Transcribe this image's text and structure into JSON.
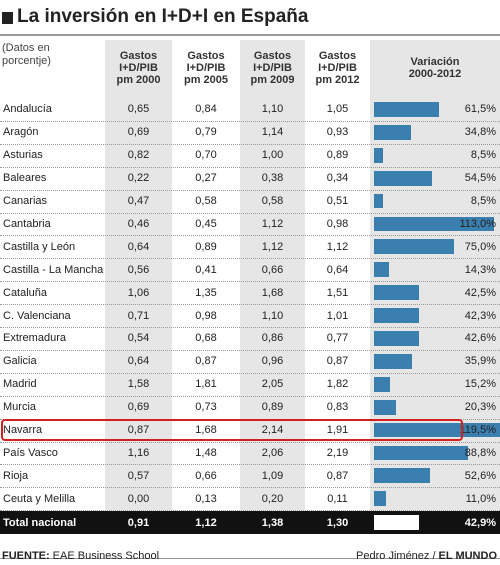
{
  "header": {
    "title": "La inversión en I+D+I en España",
    "note": [
      "(Datos en",
      "porcentje)"
    ],
    "columns": [
      [
        "Gastos",
        "I+D/PIB",
        "pm 2000"
      ],
      [
        "Gastos",
        "I+D/PIB",
        "pm 2005"
      ],
      [
        "Gastos",
        "I+D/PIB",
        "pm 2009"
      ],
      [
        "Gastos",
        "I+D/PIB",
        "pm 2012"
      ],
      [
        "Variación",
        "2000-2012"
      ]
    ]
  },
  "table": {
    "rows": [
      {
        "name": "Andalucía",
        "values": [
          "0,65",
          "0,84",
          "1,10",
          "1,05"
        ],
        "variation": {
          "value": 61.5,
          "label": "61,5%"
        }
      },
      {
        "name": "Aragón",
        "values": [
          "0,69",
          "0,79",
          "1,14",
          "0,93"
        ],
        "variation": {
          "value": 34.8,
          "label": "34,8%"
        }
      },
      {
        "name": "Asturias",
        "values": [
          "0,82",
          "0,70",
          "1,00",
          "0,89"
        ],
        "variation": {
          "value": 8.5,
          "label": "8,5%"
        }
      },
      {
        "name": "Baleares",
        "values": [
          "0,22",
          "0,27",
          "0,38",
          "0,34"
        ],
        "variation": {
          "value": 54.5,
          "label": "54,5%"
        }
      },
      {
        "name": "Canarias",
        "values": [
          "0,47",
          "0,58",
          "0,58",
          "0,51"
        ],
        "variation": {
          "value": 8.5,
          "label": "8,5%"
        }
      },
      {
        "name": "Cantabria",
        "values": [
          "0,46",
          "0,45",
          "1,12",
          "0,98"
        ],
        "variation": {
          "value": 113.0,
          "label": "113,0%"
        }
      },
      {
        "name": "Castilla y León",
        "values": [
          "0,64",
          "0,89",
          "1,12",
          "1,12"
        ],
        "variation": {
          "value": 75.0,
          "label": "75,0%"
        }
      },
      {
        "name": "Castilla - La Mancha",
        "values": [
          "0,56",
          "0,41",
          "0,66",
          "0,64"
        ],
        "variation": {
          "value": 14.3,
          "label": "14,3%"
        }
      },
      {
        "name": "Cataluña",
        "values": [
          "1,06",
          "1,35",
          "1,68",
          "1,51"
        ],
        "variation": {
          "value": 42.5,
          "label": "42,5%"
        }
      },
      {
        "name": "C. Valenciana",
        "values": [
          "0,71",
          "0,98",
          "1,10",
          "1,01"
        ],
        "variation": {
          "value": 42.3,
          "label": "42,3%"
        }
      },
      {
        "name": "Extremadura",
        "values": [
          "0,54",
          "0,68",
          "0,86",
          "0,77"
        ],
        "variation": {
          "value": 42.6,
          "label": "42,6%"
        }
      },
      {
        "name": "Galicia",
        "values": [
          "0,64",
          "0,87",
          "0,96",
          "0,87"
        ],
        "variation": {
          "value": 35.9,
          "label": "35,9%"
        }
      },
      {
        "name": "Madrid",
        "values": [
          "1,58",
          "1,81",
          "2,05",
          "1,82"
        ],
        "variation": {
          "value": 15.2,
          "label": "15,2%"
        }
      },
      {
        "name": "Murcia",
        "values": [
          "0,69",
          "0,73",
          "0,89",
          "0,83"
        ],
        "variation": {
          "value": 20.3,
          "label": "20,3%"
        }
      },
      {
        "name": "Navarra",
        "values": [
          "0,87",
          "1,68",
          "2,14",
          "1,91"
        ],
        "variation": {
          "value": 119.5,
          "label": "119,5%"
        }
      },
      {
        "name": "País Vasco",
        "values": [
          "1,16",
          "1,48",
          "2,06",
          "2,19"
        ],
        "variation": {
          "value": 88.8,
          "label": "88,8%"
        }
      },
      {
        "name": "Rioja",
        "values": [
          "0,57",
          "0,66",
          "1,09",
          "0,87"
        ],
        "variation": {
          "value": 52.6,
          "label": "52,6%"
        }
      },
      {
        "name": "Ceuta y Melilla",
        "values": [
          "0,00",
          "0,13",
          "0,20",
          "0,11"
        ],
        "variation": {
          "value": 11.0,
          "label": "11,0%"
        }
      }
    ],
    "total": {
      "name": "Total nacional",
      "values": [
        "0,91",
        "1,12",
        "1,38",
        "1,30"
      ],
      "variation": {
        "value": 42.9,
        "label": "42,9%"
      }
    },
    "highlight": 14
  },
  "footer": {
    "source_label": "FUENTE:",
    "source": "EAE Business School",
    "author": "Pedro Jiménez /",
    "outlet": "EL MUNDO"
  }
}
